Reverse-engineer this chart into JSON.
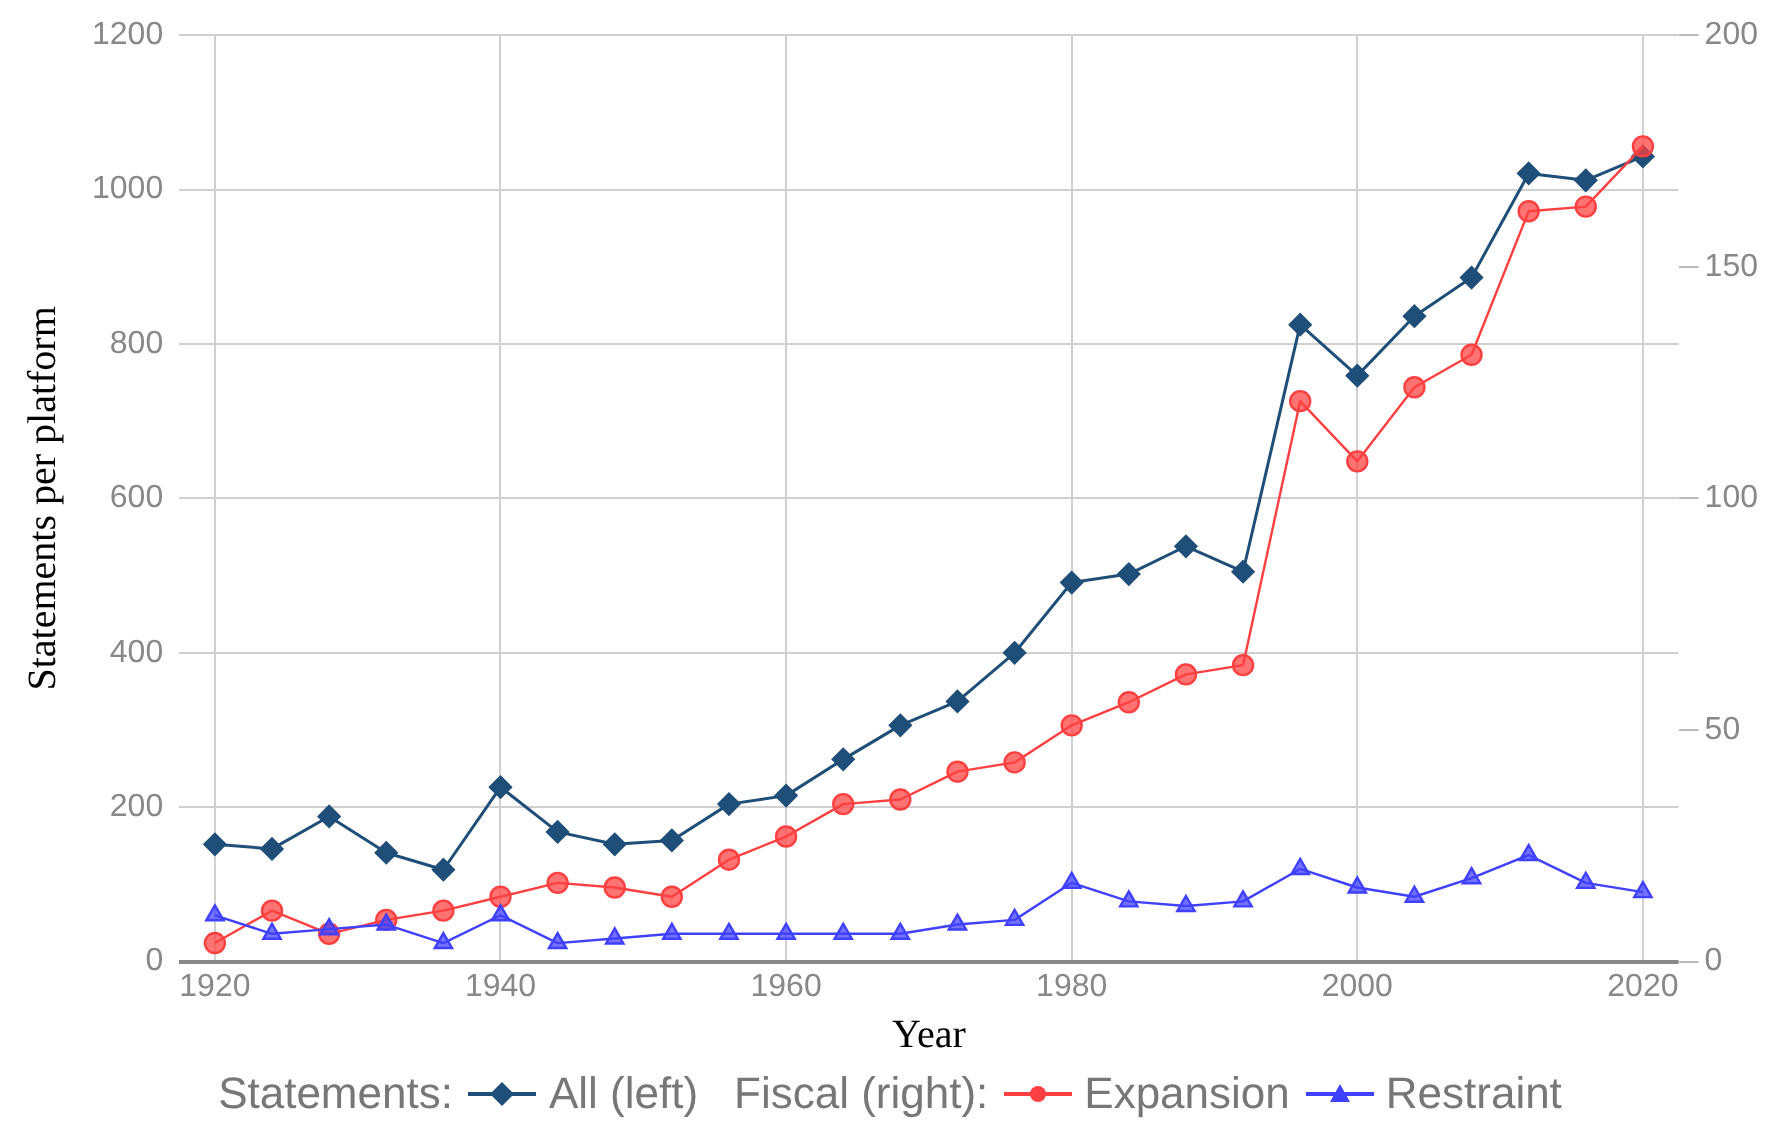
{
  "chart_data": {
    "type": "line",
    "xlabel": "Year",
    "ylabel": "Statements per platform",
    "legend_title": "Statements:",
    "annotations": [
      "Fiscal (right):"
    ],
    "x": [
      1920,
      1924,
      1928,
      1932,
      1936,
      1940,
      1944,
      1948,
      1952,
      1956,
      1960,
      1964,
      1968,
      1972,
      1976,
      1980,
      1984,
      1988,
      1992,
      1996,
      2000,
      2004,
      2008,
      2012,
      2016,
      2020
    ],
    "series": [
      {
        "name": "All (left)",
        "color": "#1f4e79",
        "marker": "diamond",
        "values": [
          152,
          146,
          188,
          141,
          119,
          226,
          168,
          152,
          157,
          204,
          215,
          262,
          306,
          337,
          400,
          491,
          502,
          538,
          505,
          825,
          759,
          836,
          886,
          1021,
          1012,
          1043
        ]
      },
      {
        "name": "Expansion",
        "color": "#ff4040",
        "marker": "circle",
        "axis": "y2",
        "values": [
          4,
          11,
          6,
          9,
          11,
          14,
          17,
          16,
          14,
          22,
          27,
          34,
          35,
          41,
          43,
          51,
          56,
          62,
          64,
          121,
          108,
          124,
          131,
          162,
          163,
          176
        ]
      },
      {
        "name": "Restraint",
        "color": "#4040ff",
        "marker": "triangle",
        "axis": "y2",
        "values": [
          10,
          6,
          7,
          8,
          4,
          10,
          4,
          5,
          6,
          6,
          6,
          6,
          6,
          8,
          9,
          17,
          13,
          12,
          13,
          20,
          16,
          14,
          18,
          23,
          17,
          15
        ]
      }
    ],
    "xlim": [
      1917.5,
      2022.5
    ],
    "xticks": [
      1920,
      1940,
      1960,
      1980,
      2000,
      2020
    ],
    "ylim": [
      0,
      1200
    ],
    "yticks": [
      0,
      200,
      400,
      600,
      800,
      1000,
      1200
    ],
    "y2lim": [
      0,
      200
    ],
    "y2ticks": [
      0,
      50,
      100,
      150,
      200
    ],
    "grid": true,
    "legend": "bottom"
  }
}
